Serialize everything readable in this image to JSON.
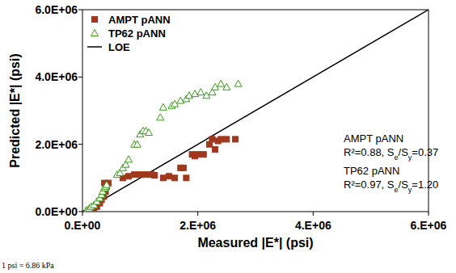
{
  "chart_data": {
    "type": "scatter",
    "xlabel": "Measured |E*| (psi)",
    "ylabel": "Predicted |E*| (psi)",
    "xlim": [
      0,
      6000000
    ],
    "ylim": [
      0,
      6000000
    ],
    "xticks": [
      {
        "value": 0,
        "label": "0.E+00"
      },
      {
        "value": 2000000,
        "label": "2.E+06"
      },
      {
        "value": 4000000,
        "label": "4.E+06"
      },
      {
        "value": 6000000,
        "label": "6.E+06"
      }
    ],
    "yticks": [
      {
        "value": 0,
        "label": "0.0E+00"
      },
      {
        "value": 2000000,
        "label": "2.0E+06"
      },
      {
        "value": 4000000,
        "label": "4.0E+06"
      },
      {
        "value": 6000000,
        "label": "6.0E+06"
      }
    ],
    "grid": false,
    "legend": "upper left",
    "series": [
      {
        "name": "AMPT pANN",
        "color": "#a0381e",
        "marker": "square",
        "x": [
          100000,
          150000,
          200000,
          250000,
          300000,
          330000,
          370000,
          400000,
          420000,
          380000,
          450000,
          700000,
          800000,
          900000,
          1000000,
          1100000,
          1200000,
          1250000,
          1400000,
          1500000,
          1600000,
          1700000,
          1750000,
          1800000,
          1900000,
          1950000,
          2000000,
          2100000,
          2200000,
          2250000,
          2300000,
          2350000,
          2400000,
          2500000,
          2650000
        ],
        "values": [
          30000,
          60000,
          100000,
          150000,
          250000,
          350000,
          450000,
          600000,
          750000,
          850000,
          850000,
          1000000,
          1050000,
          1100000,
          1100000,
          1100000,
          1100000,
          1080000,
          1000000,
          1050000,
          1000000,
          1300000,
          1300000,
          1000000,
          1700000,
          1650000,
          1700000,
          1700000,
          2000000,
          2150000,
          1850000,
          2100000,
          2150000,
          2150000,
          2150000
        ]
      },
      {
        "name": "TP62 pANN",
        "color": "#3a9a1a",
        "marker": "triangle",
        "x": [
          80000,
          120000,
          150000,
          200000,
          250000,
          300000,
          330000,
          350000,
          380000,
          400000,
          420000,
          600000,
          650000,
          700000,
          750000,
          800000,
          900000,
          950000,
          1000000,
          1050000,
          1100000,
          1150000,
          1350000,
          1400000,
          1550000,
          1600000,
          1700000,
          1800000,
          1850000,
          1950000,
          2050000,
          2150000,
          2250000,
          2300000,
          2400000,
          2500000,
          2700000
        ],
        "values": [
          50000,
          100000,
          150000,
          200000,
          300000,
          400000,
          500000,
          600000,
          700000,
          750000,
          800000,
          1100000,
          1150000,
          1300000,
          1400000,
          1550000,
          2000000,
          2000000,
          2300000,
          2400000,
          2400000,
          2350000,
          2800000,
          3100000,
          3150000,
          3200000,
          3300000,
          3350000,
          3450000,
          3500000,
          3550000,
          3450000,
          3550000,
          3700000,
          3800000,
          3700000,
          3800000
        ]
      },
      {
        "name": "LOE",
        "color": "#000000",
        "type": "line",
        "line_style": "solid",
        "x": [
          0,
          6000000
        ],
        "values": [
          0,
          6000000
        ]
      }
    ],
    "annotations": [
      "AMPT pANN",
      "R²=0.88, Se/Sy=0.37",
      "TP62 pANN",
      "R²=0.97, Se/Sy=1.20"
    ],
    "footnote": "1 psi = 6.86 kPa"
  }
}
